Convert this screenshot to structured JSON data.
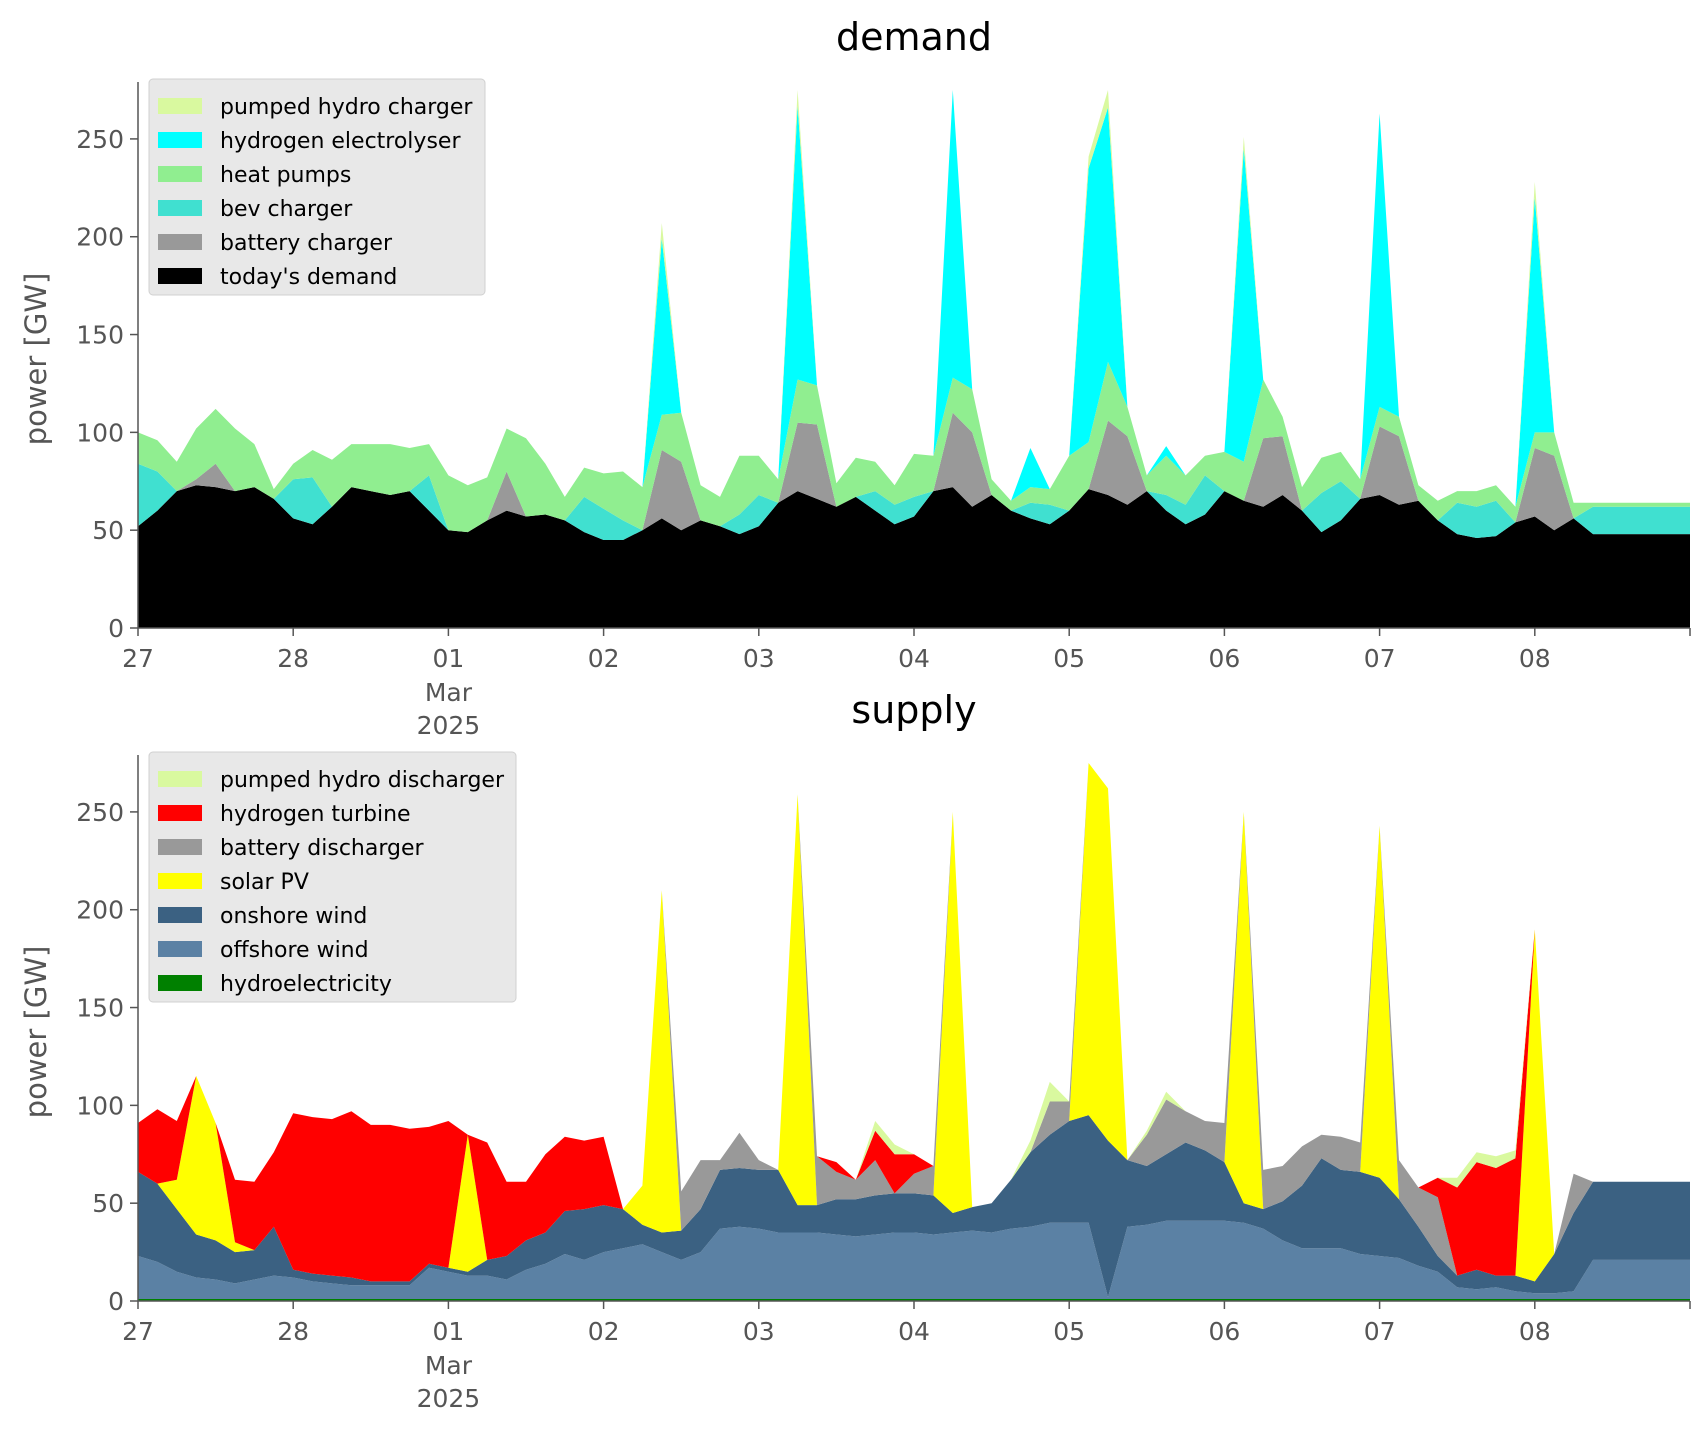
{
  "chart_data": [
    {
      "type": "area",
      "title": "demand",
      "ylabel": "power [GW]",
      "xlabel": "",
      "stacked": true,
      "ylim": [
        0,
        275
      ],
      "xlim": [
        "2025-02-27T00:00",
        "2025-03-09T00:00"
      ],
      "xtick_labels": [
        "27",
        "28",
        "01",
        "02",
        "03",
        "04",
        "05",
        "06",
        "07",
        "08"
      ],
      "xtick_sublabels": [
        "Mar",
        "2025"
      ],
      "yticks": [
        0,
        50,
        100,
        150,
        200,
        250
      ],
      "grid": false,
      "legend_position": "top-left",
      "x_start": "2025-02-27T00:00",
      "x_step": "3h",
      "series_bottom_to_top": [
        {
          "name": "today's demand",
          "color": "#000000",
          "values": [
            52,
            60,
            70,
            73,
            72,
            70,
            72,
            66,
            56,
            53,
            62,
            72,
            70,
            68,
            70,
            60,
            50,
            49,
            55,
            60,
            57,
            58,
            55,
            49,
            45,
            45,
            50,
            56,
            50,
            55,
            52,
            48,
            52,
            64,
            70,
            66,
            62,
            67,
            60,
            53,
            57,
            70,
            72,
            62,
            68,
            60,
            56,
            53,
            60,
            71,
            68,
            63,
            70,
            60,
            53,
            58,
            70,
            65,
            62,
            68,
            60,
            49,
            55,
            66,
            68,
            63,
            65,
            55,
            48,
            46,
            47,
            54,
            57,
            50,
            56,
            48
          ]
        },
        {
          "name": "battery charger",
          "color": "#999999",
          "values": [
            0,
            0,
            0,
            3,
            12,
            0,
            0,
            0,
            0,
            0,
            0,
            0,
            0,
            0,
            0,
            0,
            0,
            0,
            0,
            20,
            0,
            0,
            0,
            0,
            0,
            0,
            0,
            35,
            35,
            0,
            0,
            0,
            0,
            0,
            35,
            38,
            0,
            0,
            0,
            0,
            0,
            0,
            38,
            38,
            0,
            0,
            0,
            0,
            0,
            0,
            38,
            35,
            0,
            0,
            0,
            0,
            0,
            0,
            35,
            30,
            0,
            0,
            0,
            0,
            35,
            35,
            0,
            0,
            0,
            0,
            0,
            0,
            35,
            38,
            0,
            0
          ]
        },
        {
          "name": "bev charger",
          "color": "#40e0d0",
          "values": [
            32,
            20,
            0,
            0,
            0,
            0,
            0,
            0,
            20,
            24,
            0,
            0,
            0,
            0,
            0,
            18,
            0,
            0,
            0,
            0,
            0,
            0,
            0,
            18,
            16,
            10,
            0,
            0,
            0,
            0,
            0,
            10,
            16,
            0,
            0,
            0,
            0,
            0,
            10,
            10,
            10,
            0,
            0,
            0,
            0,
            0,
            8,
            10,
            0,
            0,
            0,
            0,
            0,
            8,
            10,
            20,
            0,
            0,
            0,
            0,
            0,
            20,
            20,
            0,
            0,
            0,
            0,
            0,
            16,
            16,
            18,
            0,
            0,
            0,
            0,
            14
          ]
        },
        {
          "name": "heat pumps",
          "color": "#90ee90",
          "values": [
            16,
            16,
            15,
            26,
            28,
            32,
            22,
            5,
            8,
            14,
            24,
            22,
            24,
            26,
            22,
            16,
            28,
            24,
            22,
            22,
            40,
            26,
            12,
            15,
            18,
            25,
            22,
            18,
            25,
            18,
            15,
            30,
            20,
            12,
            22,
            20,
            12,
            20,
            15,
            10,
            22,
            18,
            18,
            22,
            8,
            5,
            8,
            8,
            28,
            24,
            30,
            15,
            8,
            20,
            15,
            10,
            20,
            20,
            30,
            10,
            12,
            18,
            15,
            10,
            10,
            10,
            8,
            10,
            6,
            8,
            8,
            8,
            8,
            12,
            8,
            2
          ]
        },
        {
          "name": "hydrogen electrolyser",
          "color": "#00ffff",
          "values": [
            0,
            0,
            0,
            0,
            0,
            0,
            0,
            0,
            0,
            0,
            0,
            0,
            0,
            0,
            0,
            0,
            0,
            0,
            0,
            0,
            0,
            0,
            0,
            0,
            0,
            0,
            0,
            90,
            0,
            0,
            0,
            0,
            0,
            0,
            140,
            0,
            0,
            0,
            0,
            0,
            0,
            0,
            150,
            0,
            0,
            0,
            20,
            0,
            0,
            140,
            130,
            0,
            0,
            5,
            0,
            0,
            0,
            160,
            0,
            0,
            0,
            0,
            0,
            0,
            150,
            0,
            0,
            0,
            0,
            0,
            0,
            0,
            120,
            0,
            0,
            0
          ]
        },
        {
          "name": "pumped hydro charger",
          "color": "#d9f99f",
          "values": [
            0,
            0,
            0,
            0,
            0,
            0,
            0,
            0,
            0,
            0,
            0,
            0,
            0,
            0,
            0,
            0,
            0,
            0,
            0,
            0,
            0,
            0,
            0,
            0,
            0,
            0,
            0,
            8,
            0,
            0,
            0,
            0,
            0,
            0,
            10,
            0,
            0,
            0,
            0,
            0,
            0,
            0,
            8,
            0,
            0,
            0,
            0,
            0,
            0,
            6,
            10,
            0,
            0,
            0,
            0,
            0,
            0,
            6,
            0,
            0,
            0,
            0,
            0,
            0,
            0,
            0,
            0,
            0,
            0,
            0,
            0,
            0,
            8,
            0,
            0,
            0
          ]
        }
      ]
    },
    {
      "type": "area",
      "title": "supply",
      "ylabel": "power [GW]",
      "xlabel": "",
      "stacked": true,
      "ylim": [
        0,
        275
      ],
      "xlim": [
        "2025-02-27T00:00",
        "2025-03-09T00:00"
      ],
      "xtick_labels": [
        "27",
        "28",
        "01",
        "02",
        "03",
        "04",
        "05",
        "06",
        "07",
        "08"
      ],
      "xtick_sublabels": [
        "Mar",
        "2025"
      ],
      "yticks": [
        0,
        50,
        100,
        150,
        200,
        250
      ],
      "grid": false,
      "legend_position": "top-left",
      "x_start": "2025-02-27T00:00",
      "x_step": "3h",
      "series_bottom_to_top": [
        {
          "name": "hydroelectricity",
          "color": "#008000",
          "values": [
            1,
            1,
            1,
            1,
            1,
            1,
            1,
            1,
            1,
            1,
            1,
            1,
            1,
            1,
            1,
            1,
            1,
            1,
            1,
            1,
            1,
            1,
            1,
            1,
            1,
            1,
            1,
            1,
            1,
            1,
            1,
            1,
            1,
            1,
            1,
            1,
            1,
            1,
            1,
            1,
            1,
            1,
            1,
            1,
            1,
            1,
            1,
            1,
            1,
            1,
            1,
            1,
            1,
            1,
            1,
            1,
            1,
            1,
            1,
            1,
            1,
            1,
            1,
            1,
            1,
            1,
            1,
            1,
            1,
            1,
            1,
            1,
            1,
            1,
            1,
            1
          ]
        },
        {
          "name": "offshore wind",
          "color": "#5b81a4",
          "values": [
            22,
            19,
            14,
            11,
            10,
            8,
            10,
            12,
            11,
            9,
            8,
            7,
            7,
            7,
            7,
            16,
            14,
            12,
            12,
            10,
            15,
            18,
            23,
            20,
            24,
            26,
            28,
            24,
            20,
            24,
            36,
            37,
            36,
            34,
            34,
            34,
            33,
            32,
            33,
            34,
            34,
            33,
            34,
            35,
            34,
            36,
            37,
            39,
            39,
            39,
            1,
            37,
            38,
            40,
            40,
            40,
            40,
            39,
            36,
            30,
            26,
            26,
            26,
            23,
            22,
            21,
            17,
            14,
            6,
            5,
            6,
            4,
            3,
            3,
            4,
            20
          ]
        },
        {
          "name": "onshore wind",
          "color": "#3b6182",
          "values": [
            43,
            40,
            32,
            22,
            20,
            16,
            15,
            25,
            4,
            4,
            4,
            4,
            2,
            2,
            2,
            2,
            2,
            2,
            8,
            12,
            15,
            16,
            22,
            26,
            24,
            20,
            10,
            10,
            15,
            22,
            30,
            30,
            30,
            32,
            14,
            14,
            18,
            19,
            20,
            20,
            20,
            20,
            10,
            12,
            15,
            25,
            38,
            45,
            52,
            55,
            80,
            34,
            30,
            34,
            40,
            36,
            30,
            10,
            10,
            20,
            32,
            46,
            40,
            42,
            40,
            30,
            20,
            8,
            6,
            10,
            6,
            8,
            6,
            20,
            40,
            40
          ]
        },
        {
          "name": "solar PV",
          "color": "#ffff00",
          "values": [
            0,
            0,
            15,
            81,
            60,
            5,
            0,
            0,
            0,
            0,
            0,
            0,
            0,
            0,
            0,
            0,
            0,
            70,
            0,
            0,
            0,
            0,
            0,
            0,
            0,
            0,
            20,
            175,
            0,
            0,
            0,
            0,
            0,
            0,
            210,
            0,
            0,
            0,
            0,
            0,
            0,
            0,
            205,
            0,
            0,
            0,
            0,
            0,
            0,
            180,
            180,
            0,
            0,
            0,
            0,
            0,
            0,
            200,
            0,
            0,
            0,
            0,
            0,
            0,
            180,
            0,
            0,
            0,
            0,
            0,
            0,
            0,
            180,
            0,
            0,
            0
          ]
        },
        {
          "name": "battery discharger",
          "color": "#999999",
          "values": [
            0,
            0,
            0,
            0,
            0,
            0,
            0,
            0,
            0,
            0,
            0,
            0,
            0,
            0,
            0,
            0,
            0,
            0,
            0,
            0,
            0,
            0,
            0,
            0,
            0,
            0,
            0,
            0,
            20,
            25,
            5,
            18,
            5,
            0,
            0,
            25,
            14,
            10,
            18,
            0,
            10,
            15,
            0,
            0,
            0,
            0,
            0,
            17,
            10,
            0,
            0,
            0,
            16,
            28,
            16,
            15,
            20,
            0,
            20,
            18,
            20,
            12,
            17,
            15,
            0,
            20,
            20,
            30,
            0,
            0,
            0,
            0,
            0,
            0,
            20,
            0
          ]
        },
        {
          "name": "hydrogen turbine",
          "color": "#ff0000",
          "values": [
            25,
            38,
            30,
            0,
            0,
            32,
            35,
            38,
            80,
            80,
            80,
            85,
            80,
            80,
            78,
            70,
            75,
            0,
            60,
            38,
            30,
            40,
            38,
            35,
            35,
            0,
            0,
            0,
            0,
            0,
            0,
            0,
            0,
            0,
            0,
            0,
            5,
            0,
            15,
            20,
            10,
            0,
            0,
            0,
            0,
            0,
            0,
            0,
            0,
            0,
            0,
            0,
            0,
            0,
            0,
            0,
            0,
            0,
            0,
            0,
            0,
            0,
            0,
            0,
            0,
            0,
            0,
            10,
            45,
            55,
            55,
            60,
            0,
            0,
            0,
            0
          ]
        },
        {
          "name": "pumped hydro discharger",
          "color": "#d9f99f",
          "values": [
            0,
            0,
            0,
            0,
            0,
            0,
            0,
            0,
            0,
            0,
            0,
            0,
            0,
            0,
            0,
            0,
            0,
            0,
            0,
            0,
            0,
            0,
            0,
            0,
            0,
            0,
            0,
            0,
            0,
            0,
            0,
            0,
            0,
            0,
            0,
            0,
            0,
            0,
            5,
            5,
            0,
            0,
            0,
            0,
            0,
            0,
            6,
            10,
            0,
            0,
            0,
            0,
            2,
            4,
            0,
            0,
            0,
            0,
            0,
            0,
            0,
            0,
            0,
            0,
            0,
            0,
            0,
            0,
            5,
            5,
            6,
            4,
            0,
            0,
            0,
            0
          ]
        }
      ]
    }
  ],
  "legends": {
    "demand": [
      "pumped hydro charger",
      "hydrogen electrolyser",
      "heat pumps",
      "bev charger",
      "battery charger",
      "today's demand"
    ],
    "supply": [
      "pumped hydro discharger",
      "hydrogen turbine",
      "battery discharger",
      "solar PV",
      "onshore wind",
      "offshore wind",
      "hydroelectricity"
    ]
  },
  "colors": {
    "panel_bg": "#ffffff",
    "legend_bg": "#e8e8e8",
    "axis": "#555555",
    "text": "#555555",
    "title": "#000000"
  }
}
